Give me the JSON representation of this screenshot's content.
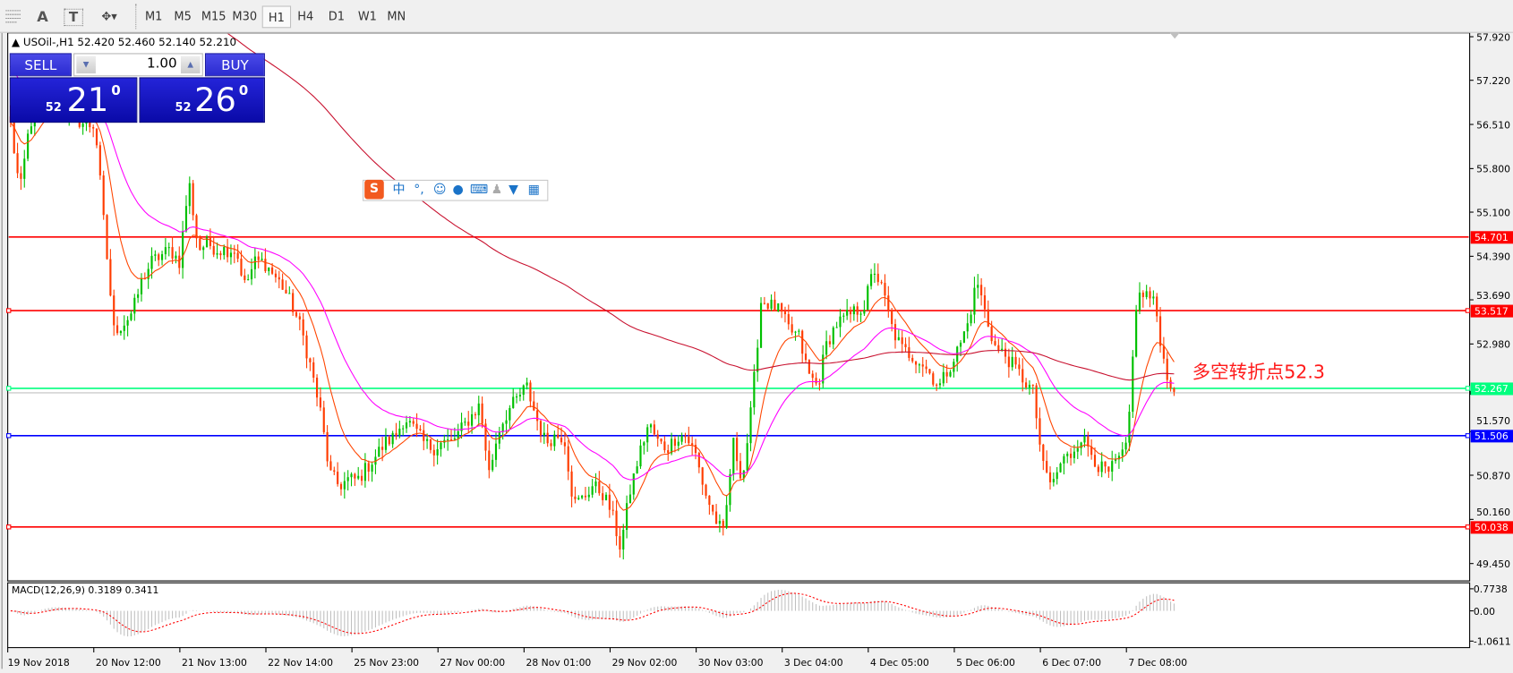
{
  "toolbar": {
    "tools": [
      "horizontal-lines-icon",
      "text-A-icon",
      "text-label-T-icon",
      "shapes-dropdown-icon"
    ],
    "text_tool": "A",
    "label_tool": "T",
    "timeframes": [
      "M1",
      "M5",
      "M15",
      "M30",
      "H1",
      "H4",
      "D1",
      "W1",
      "MN"
    ],
    "selected_timeframe": "H1"
  },
  "chart_header": {
    "symbol": "USOil-,H1",
    "open": "52.420",
    "high": "52.460",
    "low": "52.140",
    "close": "52.210"
  },
  "trade_panel": {
    "sell_label": "SELL",
    "buy_label": "BUY",
    "lot": "1.00",
    "sell_price": {
      "big_prefix": "52",
      "big": "21",
      "sup": "0"
    },
    "buy_price": {
      "big_prefix": "52",
      "big": "26",
      "sup": "0"
    },
    "color": "#1a1ad0"
  },
  "ime_toolbar": {
    "mode": "中",
    "punct": "°,",
    "icons": [
      "sogou-logo-icon",
      "chinese-mode-icon",
      "punctuation-icon",
      "emoji-icon",
      "microphone-icon",
      "keyboard-icon",
      "user-icon",
      "skin-shirt-icon",
      "toolbox-grid-icon"
    ]
  },
  "annotation": {
    "text": "多空转折点52.3",
    "color": "#ff1a1a"
  },
  "chart_data": {
    "type": "candlestick",
    "symbol": "USOil-",
    "timeframe": "H1",
    "price_axis": {
      "range": [
        49.45,
        57.92
      ],
      "ticks": [
        "57.920",
        "57.220",
        "56.510",
        "55.800",
        "55.100",
        "54.390",
        "53.690",
        "52.980",
        "51.570",
        "50.870",
        "50.160",
        "49.450"
      ]
    },
    "time_labels": [
      "19 Nov 2018",
      "20 Nov 12:00",
      "21 Nov 13:00",
      "22 Nov 14:00",
      "25 Nov 23:00",
      "27 Nov 00:00",
      "28 Nov 01:00",
      "29 Nov 02:00",
      "30 Nov 03:00",
      "3 Dec 04:00",
      "4 Dec 05:00",
      "5 Dec 06:00",
      "6 Dec 07:00",
      "7 Dec 08:00"
    ],
    "colors": {
      "up": "#00c000",
      "down": "#ff3c00",
      "ma_fast": "#ff4500",
      "ma_mid": "#ff00ff",
      "ma_slow": "#c8102e"
    },
    "approx_close_path": [
      56.5,
      55.4,
      56.5,
      56.8,
      57.0,
      56.9,
      56.7,
      56.6,
      56.5,
      56.5,
      54.8,
      53.2,
      53.3,
      53.5,
      54.0,
      54.3,
      54.4,
      54.5,
      54.3,
      55.6,
      54.5,
      54.6,
      54.5,
      54.5,
      54.5,
      53.9,
      54.3,
      54.3,
      54.1,
      53.9,
      53.6,
      53.2,
      52.6,
      51.9,
      50.9,
      50.7,
      50.8,
      50.8,
      51.0,
      51.2,
      51.4,
      51.5,
      51.8,
      51.6,
      51.4,
      51.3,
      51.4,
      51.4,
      51.6,
      51.8,
      52.0,
      50.9,
      51.6,
      51.9,
      52.1,
      52.3,
      51.8,
      51.4,
      51.5,
      51.5,
      50.4,
      50.5,
      50.7,
      50.6,
      50.3,
      49.7,
      50.6,
      51.2,
      51.7,
      51.4,
      51.3,
      51.5,
      51.5,
      51.2,
      50.6,
      50.2,
      49.9,
      51.4,
      50.8,
      52.0,
      53.7,
      53.6,
      53.5,
      53.2,
      53.1,
      52.5,
      52.3,
      53.0,
      53.3,
      53.4,
      53.5,
      53.6,
      54.2,
      53.8,
      53.2,
      52.9,
      52.8,
      52.7,
      52.5,
      52.3,
      52.6,
      52.9,
      53.3,
      54.0,
      53.4,
      52.9,
      52.8,
      52.6,
      52.4,
      52.2,
      51.0,
      50.7,
      51.1,
      51.2,
      51.5,
      51.3,
      51.0,
      50.9,
      51.1,
      51.3,
      53.7,
      53.8,
      53.6,
      52.6,
      52.21
    ],
    "horizontal_lines": [
      {
        "value": "54.701",
        "color": "#ff0000"
      },
      {
        "value": "53.517",
        "color": "#ff0000"
      },
      {
        "value": "52.267",
        "color": "#00ff7f"
      },
      {
        "value": "51.506",
        "color": "#0000ff"
      },
      {
        "value": "50.038",
        "color": "#ff0000"
      }
    ],
    "current_price": 52.21,
    "macd": {
      "label": "MACD(12,26,9) 0.3189 0.3411",
      "ticks": [
        "0.7738",
        "0.00",
        "-1.0611"
      ],
      "range": [
        -1.0611,
        0.7738
      ],
      "histogram_color": "#c0c0c0",
      "signal_color": "#ff0000"
    }
  }
}
